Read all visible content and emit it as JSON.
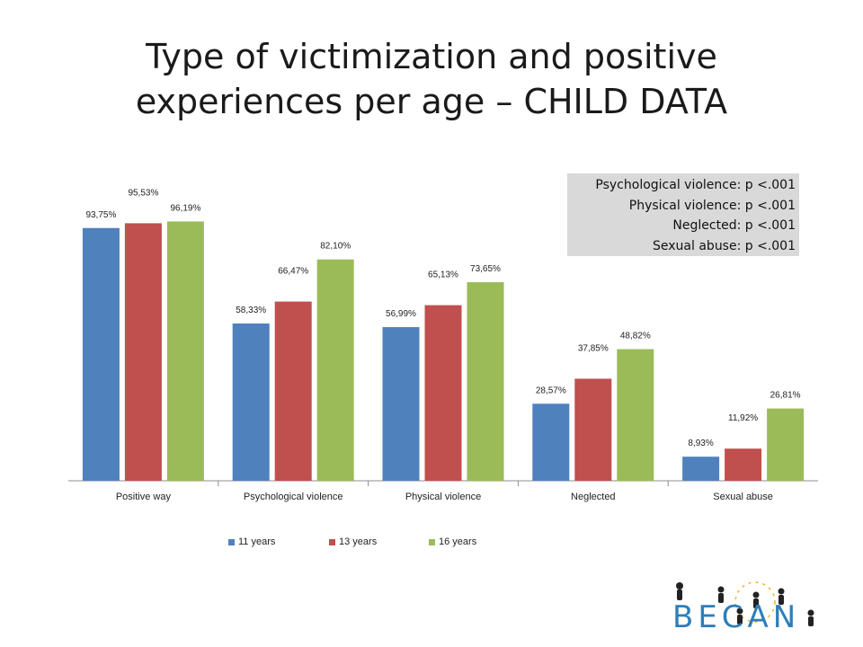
{
  "title_line1": "Type of victimization and positive",
  "title_line2": "experiences per age – CHILD DATA",
  "stats_box": [
    "Psychological violence: p <.001",
    "Physical violence: p <.001",
    "Neglected: p <.001",
    "Sexual abuse: p <.001"
  ],
  "colors": {
    "11 years": "#4f81bd",
    "13 years": "#c0504d",
    "16 years": "#9bbb59"
  },
  "logo_text": "BECAN",
  "chart_data": {
    "type": "bar",
    "categories": [
      "Positive way",
      "Psychological violence",
      "Physical violence",
      "Neglected",
      "Sexual abuse"
    ],
    "series": [
      {
        "name": "11 years",
        "values": [
          93.75,
          58.33,
          56.99,
          28.57,
          8.93
        ],
        "labels": [
          "93,75%",
          "58,33%",
          "56,99%",
          "28,57%",
          "8,93%"
        ]
      },
      {
        "name": "13 years",
        "values": [
          95.53,
          66.47,
          65.13,
          37.85,
          11.92
        ],
        "labels": [
          "95,53%",
          "66,47%",
          "65,13%",
          "37,85%",
          "11,92%"
        ]
      },
      {
        "name": "16 years",
        "values": [
          96.19,
          82.1,
          73.65,
          48.82,
          26.81
        ],
        "labels": [
          "96,19%",
          "82,10%",
          "73,65%",
          "48,82%",
          "26,81%"
        ]
      }
    ],
    "ylim": [
      0,
      100
    ],
    "grid": false,
    "legend_position": "bottom"
  }
}
